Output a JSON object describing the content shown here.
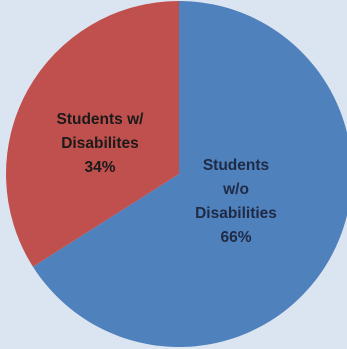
{
  "chart_data": {
    "type": "pie",
    "slices": [
      {
        "label_lines": [
          "Students",
          "w/o",
          "Disabilities"
        ],
        "percent_label": "66%",
        "value": 66,
        "color": "#4f81bd",
        "text_color": "#1f2a44"
      },
      {
        "label_lines": [
          "Students w/",
          "Disabilites"
        ],
        "percent_label": "34%",
        "value": 34,
        "color": "#c0504d",
        "text_color": "#1a1a1a"
      }
    ],
    "start_angle_deg": 0,
    "direction": "clockwise",
    "background": "#dbe5f1"
  }
}
